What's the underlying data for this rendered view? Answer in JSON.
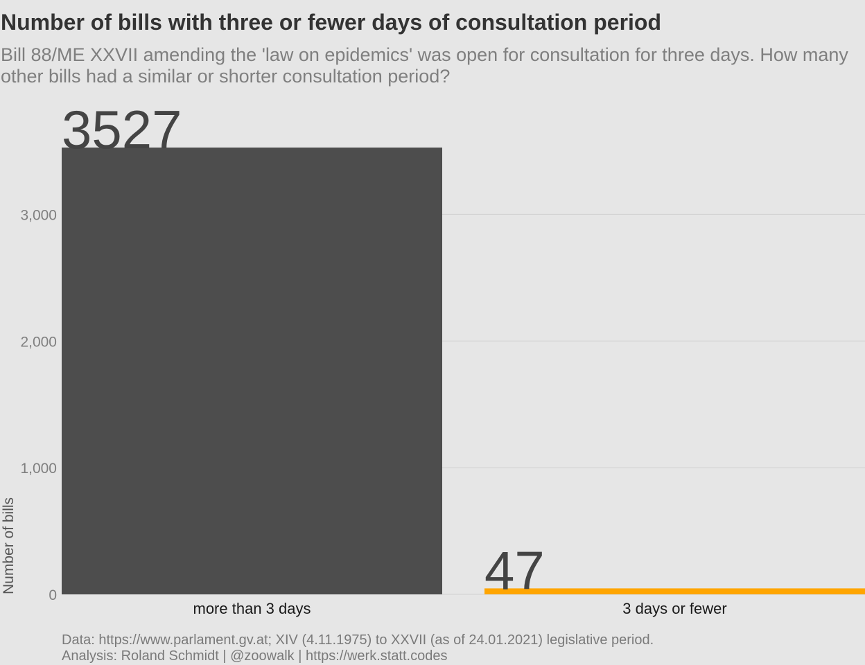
{
  "title": "Number of bills with three or fewer days of consultation period",
  "subtitle_line1": "Bill 88/ME XXVII amending the 'law on epidemics' was open for consultation for three days. How many",
  "subtitle_line2": "other bills had a similar or shorter consultation period?",
  "caption_line1": "Data: https://www.parlament.gv.at; XIV (4.11.1975) to XXVII (as of 24.01.2021) legislative period.",
  "caption_line2": "Analysis: Roland Schmidt | @zoowalk | https://werk.statt.codes",
  "colors": {
    "bar_main": "#4d4d4d",
    "bar_highlight": "#ffa500",
    "grid": "#d0d0d0",
    "axis_text": "#7f7f7f",
    "label_text": "#444444"
  },
  "chart_data": {
    "type": "bar",
    "categories": [
      "more than 3 days",
      "3 days or fewer"
    ],
    "values": [
      3527,
      47
    ],
    "data_labels": [
      "3527",
      "47"
    ],
    "ylabel": "Number of bills",
    "xlabel": "",
    "ylim": [
      0,
      3527
    ],
    "yticks": [
      0,
      1000,
      2000,
      3000
    ],
    "ytick_labels": [
      "0",
      "1,000",
      "2,000",
      "3,000"
    ],
    "grid": "horizontal",
    "legend": "none"
  }
}
